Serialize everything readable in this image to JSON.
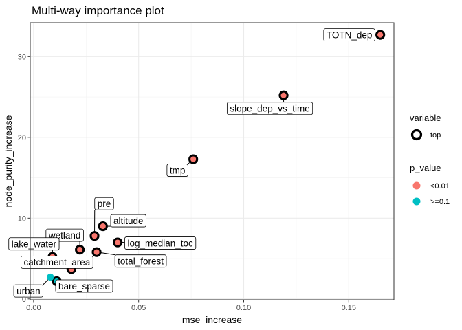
{
  "chart_data": {
    "type": "scatter",
    "title": "Multi-way importance plot",
    "xlabel": "mse_increase",
    "ylabel": "node_purity_increase",
    "xlim": [
      -0.0016,
      0.1715
    ],
    "ylim": [
      -0.1,
      34.2
    ],
    "xticks": [
      0.0,
      0.05,
      0.1,
      0.15
    ],
    "xtick_labels": [
      "0.00",
      "0.05",
      "0.10",
      "0.15"
    ],
    "yticks": [
      0,
      10,
      20,
      30
    ],
    "ytick_labels": [
      "0",
      "10",
      "20",
      "30"
    ],
    "grid": true,
    "colors": {
      "<0.01": "#F8766D",
      ">=0.1": "#00BFC4",
      "top_ring": "#000000"
    },
    "legend": {
      "placement": "right",
      "variable_title": "variable",
      "variable_entries": [
        "top"
      ],
      "p_value_title": "p_value",
      "p_value_entries": [
        "<0.01",
        ">=0.1"
      ]
    },
    "points": [
      {
        "label": "TOTN_dep",
        "x": 0.165,
        "y": 32.7,
        "p_value": "<0.01",
        "top": true,
        "label_pos": "left"
      },
      {
        "label": "slope_dep_vs_time",
        "x": 0.119,
        "y": 25.2,
        "p_value": "<0.01",
        "top": true,
        "label_pos": "below"
      },
      {
        "label": "tmp",
        "x": 0.076,
        "y": 17.3,
        "p_value": "<0.01",
        "top": true,
        "label_pos": "below-left"
      },
      {
        "label": "pre",
        "x": 0.029,
        "y": 7.8,
        "p_value": "<0.01",
        "top": true,
        "label_pos": "above"
      },
      {
        "label": "altitude",
        "x": 0.033,
        "y": 9.0,
        "p_value": "<0.01",
        "top": true,
        "label_pos": "right"
      },
      {
        "label": "wetland",
        "x": 0.022,
        "y": 6.1,
        "p_value": "<0.01",
        "top": true,
        "label_pos": "above-left"
      },
      {
        "label": "log_median_toc",
        "x": 0.04,
        "y": 7.0,
        "p_value": "<0.01",
        "top": true,
        "label_pos": "right"
      },
      {
        "label": "total_forest",
        "x": 0.03,
        "y": 5.8,
        "p_value": "<0.01",
        "top": true,
        "label_pos": "below-right"
      },
      {
        "label": "lake_water",
        "x": 0.009,
        "y": 5.2,
        "p_value": "<0.01",
        "top": true,
        "label_pos": "above"
      },
      {
        "label": "catchment_area",
        "x": 0.018,
        "y": 3.7,
        "p_value": "<0.01",
        "top": true,
        "label_pos": "above-left"
      },
      {
        "label": "bare_sparse",
        "x": 0.011,
        "y": 2.2,
        "p_value": ">=0.1",
        "top": true,
        "label_pos": "below-right"
      },
      {
        "label": "urban",
        "x": 0.008,
        "y": 2.7,
        "p_value": ">=0.1",
        "top": false,
        "label_pos": "below"
      }
    ]
  }
}
